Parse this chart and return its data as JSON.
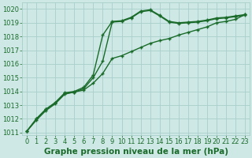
{
  "title": "Graphe pression niveau de la mer (hPa)",
  "background_color": "#cde8e5",
  "grid_color": "#a8cfcb",
  "line_color": "#1a6b2a",
  "ylim": [
    1010.8,
    1020.5
  ],
  "yticks": [
    1011,
    1012,
    1013,
    1014,
    1015,
    1016,
    1017,
    1018,
    1019,
    1020
  ],
  "xlim": [
    -0.5,
    23.5
  ],
  "xticks": [
    0,
    1,
    2,
    3,
    4,
    5,
    6,
    7,
    8,
    9,
    10,
    11,
    12,
    13,
    14,
    15,
    16,
    17,
    18,
    19,
    20,
    21,
    22,
    23
  ],
  "series1_x": [
    0,
    1,
    2,
    3,
    4,
    5,
    6,
    7,
    8,
    9,
    10,
    11,
    12,
    13,
    14,
    15,
    16,
    17,
    18,
    19,
    20,
    21,
    22,
    23
  ],
  "series1_y": [
    1011.1,
    1012.0,
    1012.7,
    1013.2,
    1013.9,
    1014.0,
    1014.3,
    1015.2,
    1018.1,
    1019.1,
    1019.15,
    1019.4,
    1019.85,
    1019.95,
    1019.55,
    1019.1,
    1019.0,
    1019.05,
    1019.1,
    1019.2,
    1019.35,
    1019.4,
    1019.5,
    1019.6
  ],
  "series2_x": [
    0,
    1,
    2,
    3,
    4,
    5,
    6,
    7,
    8,
    9,
    10,
    11,
    12,
    13,
    14,
    15,
    16,
    17,
    18,
    19,
    20,
    21,
    22,
    23
  ],
  "series2_y": [
    1011.1,
    1011.9,
    1012.6,
    1013.1,
    1013.8,
    1013.95,
    1014.1,
    1014.6,
    1015.3,
    1016.4,
    1016.6,
    1016.9,
    1017.2,
    1017.5,
    1017.7,
    1017.85,
    1018.1,
    1018.3,
    1018.5,
    1018.7,
    1019.0,
    1019.1,
    1019.25,
    1019.6
  ],
  "series3_x": [
    0,
    1,
    2,
    3,
    4,
    5,
    6,
    7,
    8,
    9,
    10,
    11,
    12,
    13,
    14,
    15,
    16,
    17,
    18,
    19,
    20,
    21,
    22,
    23
  ],
  "series3_y": [
    1011.1,
    1012.0,
    1012.7,
    1013.15,
    1013.85,
    1013.95,
    1014.2,
    1015.0,
    1016.2,
    1019.05,
    1019.1,
    1019.35,
    1019.8,
    1019.9,
    1019.5,
    1019.05,
    1018.95,
    1019.0,
    1019.05,
    1019.15,
    1019.3,
    1019.35,
    1019.45,
    1019.55
  ],
  "marker": "+",
  "markersize": 3.5,
  "linewidth": 1.0,
  "xlabel_fontsize": 7.5,
  "tick_fontsize": 6.0
}
